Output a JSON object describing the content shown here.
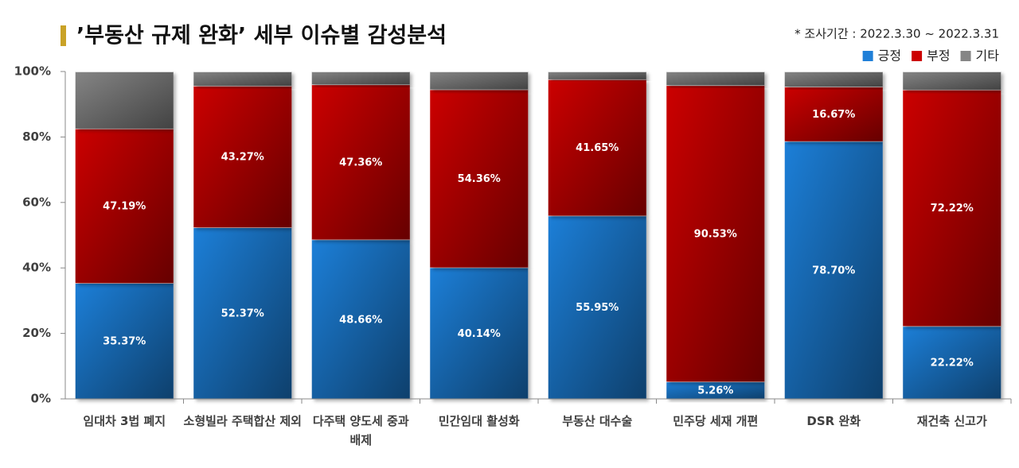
{
  "chart_data": {
    "type": "stacked_bar_100",
    "title": "’부동산 규제 완화’ 세부 이슈별 감성분석",
    "note": "* 조사기간 : 2022.3.30 ~ 2022.3.31",
    "categories": [
      "임대차 3법 폐지",
      "소형빌라 주택합산 제외",
      "다주택 양도세 중과 배제",
      "민간임대 활성화",
      "부동산 대수술",
      "민주당 세재 개편",
      "DSR 완화",
      "재건축 신고가"
    ],
    "series": [
      {
        "name": "긍정",
        "color": "#1f7fd8",
        "values": [
          35.37,
          52.37,
          48.66,
          40.14,
          55.95,
          5.26,
          78.7,
          22.22
        ],
        "value_labels": [
          "35.37%",
          "52.37%",
          "48.66%",
          "40.14%",
          "55.95%",
          "5.26%",
          "78.70%",
          "22.22%"
        ]
      },
      {
        "name": "부정",
        "color": "#cc0000",
        "values": [
          47.19,
          43.27,
          47.36,
          54.36,
          41.65,
          90.53,
          16.67,
          72.22
        ],
        "value_labels": [
          "47.19%",
          "43.27%",
          "47.36%",
          "54.36%",
          "41.65%",
          "90.53%",
          "16.67%",
          "72.22%"
        ]
      },
      {
        "name": "기타",
        "color": "#858585",
        "values": [
          17.44,
          4.36,
          3.98,
          5.5,
          2.4,
          4.21,
          4.63,
          5.56
        ]
      }
    ],
    "ylim": [
      0,
      100
    ],
    "yticks": [
      {
        "value": 0,
        "label": "0%"
      },
      {
        "value": 20,
        "label": "20%"
      },
      {
        "value": 40,
        "label": "40%"
      },
      {
        "value": 60,
        "label": "60%"
      },
      {
        "value": 80,
        "label": "80%"
      },
      {
        "value": 100,
        "label": "100%"
      }
    ],
    "legend": "top-right"
  }
}
